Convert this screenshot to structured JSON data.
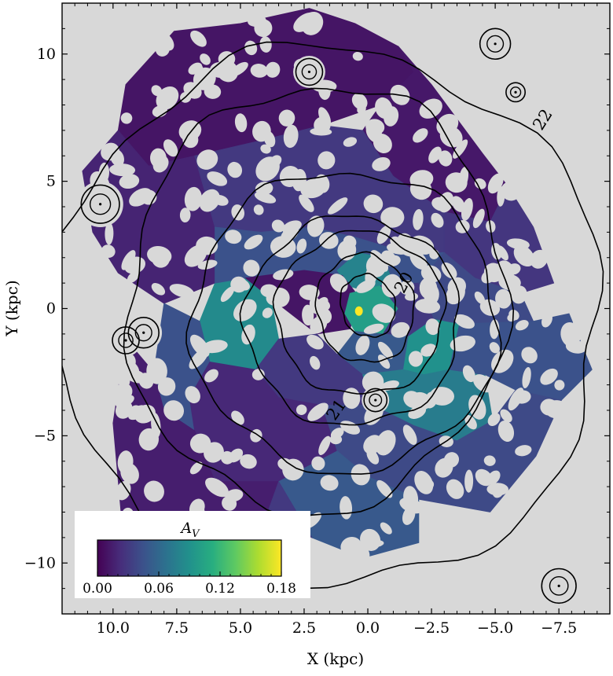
{
  "chart_data": {
    "type": "heatmap",
    "title": "",
    "xlabel": "X (kpc)",
    "ylabel": "Y (kpc)",
    "xlim": [
      12,
      -9.5
    ],
    "ylim": [
      -12,
      12
    ],
    "x_inverted": true,
    "x_ticks": [
      10.0,
      7.5,
      5.0,
      2.5,
      0.0,
      -2.5,
      -5.0,
      -7.5
    ],
    "x_tick_labels": [
      "10.0",
      "7.5",
      "5.0",
      "2.5",
      "0.0",
      "−2.5",
      "−5.0",
      "−7.5"
    ],
    "y_ticks": [
      10,
      5,
      0,
      -5,
      -10
    ],
    "y_tick_labels": [
      "10",
      "5",
      "0",
      "−5",
      "−10"
    ],
    "grid": false,
    "colorbar": {
      "label": "A_V",
      "label_display": "A",
      "label_sub": "V",
      "colormap": "viridis",
      "range": [
        0.0,
        0.18
      ],
      "ticks": [
        0.0,
        0.06,
        0.12,
        0.18
      ],
      "tick_labels": [
        "0.00",
        "0.06",
        "0.12",
        "0.18"
      ],
      "placement": "lower-left inset"
    },
    "contour_levels": [
      "20",
      "21",
      "22"
    ],
    "regions": [
      {
        "name": "outer-north",
        "av": 0.01,
        "poly": [
          [
            7.6,
            10.9
          ],
          [
            5,
            11.2
          ],
          [
            2.3,
            11.8
          ],
          [
            0.5,
            11.2
          ],
          [
            -1.2,
            10.3
          ],
          [
            -1.8,
            9.3
          ],
          [
            -0.5,
            8.0
          ],
          [
            1.8,
            7.2
          ],
          [
            4.2,
            6.6
          ],
          [
            6.8,
            6.0
          ],
          [
            8.6,
            5.6
          ],
          [
            9.8,
            7.0
          ],
          [
            9.5,
            8.8
          ]
        ]
      },
      {
        "name": "outer-northwest",
        "av": 0.012,
        "poly": [
          [
            -1.2,
            10.3
          ],
          [
            -2.5,
            8.8
          ],
          [
            -4.5,
            6.1
          ],
          [
            -5.5,
            4.8
          ],
          [
            -4.8,
            3.4
          ],
          [
            -3.0,
            3.8
          ],
          [
            -1.0,
            5.2
          ],
          [
            0.2,
            7.0
          ],
          [
            -0.5,
            8.0
          ],
          [
            -1.8,
            9.3
          ]
        ]
      },
      {
        "name": "west-arm",
        "av": 0.028,
        "poly": [
          [
            -5.5,
            4.8
          ],
          [
            -6.5,
            3.2
          ],
          [
            -7.3,
            1.0
          ],
          [
            -6.0,
            0.6
          ],
          [
            -4.2,
            1.2
          ],
          [
            -3.0,
            2.2
          ],
          [
            -3.0,
            3.8
          ],
          [
            -4.8,
            3.4
          ]
        ]
      },
      {
        "name": "outer-east",
        "av": 0.018,
        "poly": [
          [
            11.2,
            5.4
          ],
          [
            9.8,
            7.0
          ],
          [
            8.6,
            5.6
          ],
          [
            6.8,
            6.0
          ],
          [
            6.0,
            3.2
          ],
          [
            6.0,
            1.0
          ],
          [
            8.0,
            0.2
          ],
          [
            9.8,
            1.4
          ],
          [
            10.8,
            3.0
          ]
        ]
      },
      {
        "name": "disk-north",
        "av": 0.03,
        "poly": [
          [
            6.8,
            6.0
          ],
          [
            4.2,
            6.6
          ],
          [
            1.8,
            7.2
          ],
          [
            0.2,
            7.0
          ],
          [
            -1.0,
            5.2
          ],
          [
            -3.0,
            3.8
          ],
          [
            -3.0,
            2.2
          ],
          [
            -1.5,
            2.2
          ],
          [
            0.5,
            2.8
          ],
          [
            2.2,
            3.2
          ],
          [
            4.2,
            3.0
          ],
          [
            6.0,
            3.2
          ]
        ]
      },
      {
        "name": "east-teal",
        "av": 0.085,
        "poly": [
          [
            6.0,
            1.0
          ],
          [
            4.8,
            1.2
          ],
          [
            3.8,
            0.4
          ],
          [
            3.5,
            -1.2
          ],
          [
            4.4,
            -2.4
          ],
          [
            6.2,
            -2.1
          ],
          [
            6.6,
            -0.5
          ]
        ]
      },
      {
        "name": "east-south",
        "av": 0.045,
        "poly": [
          [
            8.0,
            0.2
          ],
          [
            6.6,
            -0.5
          ],
          [
            6.2,
            -2.1
          ],
          [
            7.0,
            -3.5
          ],
          [
            6.8,
            -4.8
          ],
          [
            8.0,
            -4.0
          ],
          [
            8.4,
            -2.5
          ]
        ]
      },
      {
        "name": "inner-ring-north",
        "av": 0.045,
        "poly": [
          [
            4.2,
            3.0
          ],
          [
            2.2,
            3.2
          ],
          [
            0.5,
            2.8
          ],
          [
            -1.5,
            2.2
          ],
          [
            -3.0,
            2.2
          ],
          [
            -2.0,
            1.0
          ],
          [
            -0.5,
            0.9
          ],
          [
            1.0,
            1.3
          ],
          [
            2.5,
            1.5
          ],
          [
            4.8,
            1.2
          ],
          [
            6.0,
            1.0
          ],
          [
            6.0,
            3.2
          ]
        ]
      },
      {
        "name": "core-teal-north",
        "av": 0.08,
        "poly": [
          [
            1.2,
            1.5
          ],
          [
            0.4,
            2.2
          ],
          [
            -0.6,
            2.0
          ],
          [
            -1.0,
            1.0
          ],
          [
            -0.2,
            0.6
          ],
          [
            0.8,
            0.9
          ]
        ]
      },
      {
        "name": "core-purple-west",
        "av": 0.01,
        "poly": [
          [
            2.5,
            1.5
          ],
          [
            1.0,
            1.3
          ],
          [
            0.3,
            0.4
          ],
          [
            0.7,
            -0.8
          ],
          [
            2.0,
            -1.0
          ],
          [
            3.8,
            0.4
          ],
          [
            4.8,
            1.2
          ]
        ]
      },
      {
        "name": "core-center",
        "av": 0.1,
        "poly": [
          [
            0.7,
            0.6
          ],
          [
            -0.5,
            0.9
          ],
          [
            -1.2,
            0.0
          ],
          [
            -0.6,
            -1.0
          ],
          [
            0.5,
            -0.9
          ],
          [
            0.9,
            -0.2
          ]
        ]
      },
      {
        "name": "core-east",
        "av": 0.03,
        "poly": [
          [
            -0.5,
            0.9
          ],
          [
            -2.0,
            1.0
          ],
          [
            -2.6,
            -0.4
          ],
          [
            -1.6,
            -1.1
          ],
          [
            -0.6,
            -1.0
          ],
          [
            -1.2,
            0.0
          ]
        ]
      },
      {
        "name": "core-south",
        "av": 0.05,
        "poly": [
          [
            0.5,
            -0.9
          ],
          [
            -0.6,
            -1.0
          ],
          [
            -1.6,
            -1.1
          ],
          [
            -1.4,
            -2.4
          ],
          [
            0.2,
            -2.6
          ],
          [
            1.2,
            -1.8
          ]
        ]
      },
      {
        "name": "inner-teal-south",
        "av": 0.09,
        "poly": [
          [
            -1.6,
            -1.1
          ],
          [
            -2.6,
            -0.4
          ],
          [
            -3.6,
            -0.6
          ],
          [
            -3.2,
            -2.4
          ],
          [
            -2.2,
            -2.6
          ],
          [
            -1.4,
            -2.4
          ]
        ]
      },
      {
        "name": "inner-west",
        "av": 0.04,
        "poly": [
          [
            -2.0,
            1.0
          ],
          [
            -3.0,
            2.2
          ],
          [
            -4.2,
            1.2
          ],
          [
            -6.0,
            0.6
          ],
          [
            -6.5,
            -0.5
          ],
          [
            -3.6,
            -0.6
          ],
          [
            -2.6,
            -0.4
          ]
        ]
      },
      {
        "name": "inner-southwest",
        "av": 0.03,
        "poly": [
          [
            2.0,
            -1.0
          ],
          [
            1.2,
            -1.8
          ],
          [
            0.2,
            -2.6
          ],
          [
            -0.2,
            -3.8
          ],
          [
            1.8,
            -3.8
          ],
          [
            3.5,
            -3.5
          ],
          [
            4.4,
            -2.4
          ],
          [
            3.5,
            -1.2
          ]
        ]
      },
      {
        "name": "south-teal",
        "av": 0.075,
        "poly": [
          [
            -1.4,
            -2.4
          ],
          [
            -2.2,
            -2.6
          ],
          [
            -3.2,
            -2.4
          ],
          [
            -4.6,
            -2.6
          ],
          [
            -4.9,
            -4.4
          ],
          [
            -3.5,
            -5.2
          ],
          [
            -1.8,
            -4.6
          ],
          [
            -0.2,
            -3.8
          ],
          [
            0.2,
            -2.6
          ]
        ]
      },
      {
        "name": "southeast-purple",
        "av": 0.02,
        "poly": [
          [
            7.0,
            -3.5
          ],
          [
            6.2,
            -2.1
          ],
          [
            4.4,
            -2.4
          ],
          [
            3.5,
            -3.5
          ],
          [
            1.8,
            -3.8
          ],
          [
            1.2,
            -5.6
          ],
          [
            3.5,
            -6.8
          ],
          [
            6.0,
            -6.8
          ],
          [
            6.8,
            -4.8
          ]
        ]
      },
      {
        "name": "southwest-arm",
        "av": 0.045,
        "poly": [
          [
            -6.5,
            -0.5
          ],
          [
            -7.9,
            -0.2
          ],
          [
            -8.8,
            -2.4
          ],
          [
            -7.6,
            -3.6
          ],
          [
            -5.8,
            -3.2
          ],
          [
            -4.6,
            -2.6
          ],
          [
            -3.2,
            -2.4
          ],
          [
            -3.6,
            -0.6
          ]
        ]
      },
      {
        "name": "south-outer",
        "av": 0.04,
        "poly": [
          [
            1.8,
            -3.8
          ],
          [
            -0.2,
            -3.8
          ],
          [
            -1.8,
            -4.6
          ],
          [
            -3.5,
            -5.2
          ],
          [
            -4.9,
            -4.4
          ],
          [
            -5.8,
            -3.2
          ],
          [
            -7.6,
            -3.6
          ],
          [
            -6.6,
            -5.8
          ],
          [
            -4.8,
            -8.0
          ],
          [
            -2.0,
            -7.5
          ],
          [
            0.0,
            -6.6
          ],
          [
            1.2,
            -5.6
          ]
        ]
      },
      {
        "name": "southeast-outer",
        "av": 0.015,
        "poly": [
          [
            9.5,
            -1.2
          ],
          [
            8.4,
            -2.5
          ],
          [
            8.0,
            -4.0
          ],
          [
            6.8,
            -4.8
          ],
          [
            6.0,
            -6.8
          ],
          [
            3.5,
            -6.8
          ],
          [
            4.0,
            -8.2
          ],
          [
            5.4,
            -9.2
          ],
          [
            6.8,
            -9.8
          ],
          [
            8.6,
            -10.4
          ],
          [
            9.6,
            -9.0
          ],
          [
            10.0,
            -4.5
          ]
        ]
      },
      {
        "name": "south-blue",
        "av": 0.05,
        "poly": [
          [
            1.2,
            -5.6
          ],
          [
            0.0,
            -6.6
          ],
          [
            -2.0,
            -7.5
          ],
          [
            -2.0,
            -9.2
          ],
          [
            0.2,
            -9.8
          ],
          [
            2.2,
            -9.0
          ],
          [
            3.5,
            -6.8
          ]
        ]
      },
      {
        "name": "far-south",
        "av": 0.03,
        "poly": [
          [
            3.5,
            -6.8
          ],
          [
            2.2,
            -9.0
          ],
          [
            4.0,
            -8.2
          ]
        ]
      }
    ],
    "contours": [
      {
        "name": "contour-20-inner",
        "level": "20",
        "cx": 0.0,
        "cy": 0.1,
        "rx": 1.05,
        "ry": 1.25,
        "rot": -20
      },
      {
        "name": "contour-20",
        "level": "20",
        "cx": 0.1,
        "cy": 0.0,
        "rx": 1.9,
        "ry": 2.15,
        "rot": -15
      },
      {
        "name": "contour-mid-a",
        "level": "",
        "cx": 0.3,
        "cy": -0.2,
        "rx": 3.3,
        "ry": 3.2,
        "rot": 0
      },
      {
        "name": "contour-mid-b",
        "level": "",
        "cx": 0.6,
        "cy": -0.5,
        "rx": 4.2,
        "ry": 4.1,
        "rot": 0
      },
      {
        "name": "contour-21",
        "level": "21",
        "cx": 0.9,
        "cy": -0.5,
        "rx": 6.0,
        "ry": 5.9,
        "rot": 0
      },
      {
        "name": "contour-outer-a",
        "level": "",
        "cx": 2.0,
        "cy": 0.4,
        "rx": 7.4,
        "ry": 8.4,
        "rot": 8
      },
      {
        "name": "contour-22",
        "level": "22",
        "cx": 1.6,
        "cy": -0.4,
        "rx": 10.8,
        "ry": 10.6,
        "rot": 6
      }
    ],
    "contour_labels": [
      {
        "text": "20",
        "x": -1.45,
        "y": 1.0,
        "rot": -62
      },
      {
        "text": "21",
        "x": 1.2,
        "y": -4.0,
        "rot": -55
      },
      {
        "text": "22",
        "x": -6.9,
        "y": 7.4,
        "rot": -58
      }
    ],
    "point_sources": [
      {
        "x": 2.3,
        "y": 9.3,
        "r": 0.35
      },
      {
        "x": 10.5,
        "y": 4.1,
        "r": 0.5
      },
      {
        "x": 9.5,
        "y": -1.25,
        "r": 0.35
      },
      {
        "x": 8.8,
        "y": -0.95,
        "r": 0.4
      },
      {
        "x": -0.3,
        "y": -3.6,
        "r": 0.3
      },
      {
        "x": -7.5,
        "y": -10.9,
        "r": 0.45
      },
      {
        "x": -5.0,
        "y": 10.4,
        "r": 0.4
      },
      {
        "x": -5.8,
        "y": 8.5,
        "r": 0.25
      }
    ],
    "hotspot": {
      "x": 0.35,
      "y": -0.1,
      "av": 0.18
    }
  }
}
